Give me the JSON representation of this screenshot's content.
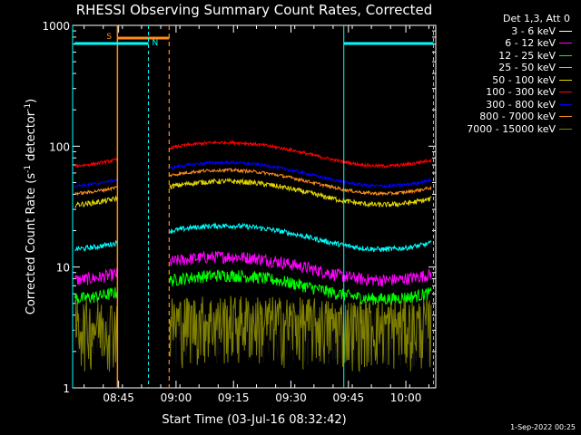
{
  "chart_data": {
    "type": "line",
    "title": "RHESSI Observing Summary Count Rates, Corrected",
    "xlabel": "Start Time (03-Jul-16 08:32:42)",
    "ylabel_main": "Corrected Count Rate (s",
    "ylabel_sup1": "-1",
    "ylabel_mid": " detector",
    "ylabel_sup2": "-1",
    "ylabel_end": ")",
    "yscale": "log",
    "ylim": [
      1,
      1000
    ],
    "xlim_minutes": [
      8.55,
      10.13
    ],
    "x_ticks": [
      {
        "value": 8.75,
        "label": "08:45"
      },
      {
        "value": 9.0,
        "label": "09:00"
      },
      {
        "value": 9.25,
        "label": "09:15"
      },
      {
        "value": 9.5,
        "label": "09:30"
      },
      {
        "value": 9.75,
        "label": "09:45"
      },
      {
        "value": 10.0,
        "label": "10:00"
      }
    ],
    "y_ticks": [
      {
        "value": 1,
        "label": "1"
      },
      {
        "value": 10,
        "label": "10"
      },
      {
        "value": 100,
        "label": "100"
      },
      {
        "value": 1000,
        "label": "1000"
      }
    ],
    "legend_title": "Det 1,3, Att 0",
    "series": [
      {
        "name": "3 - 6 keV",
        "color": "#000000",
        "base": 3.0,
        "noise": 0.5
      },
      {
        "name": "6 - 12 keV",
        "color": "#ff00ff",
        "base": 10.0,
        "noise": 0.12
      },
      {
        "name": "12 - 25 keV",
        "color": "#00ff00",
        "base": 7.0,
        "noise": 0.12
      },
      {
        "name": "25 - 50 keV",
        "color": "#00ffff",
        "base": 18.0,
        "noise": 0.05
      },
      {
        "name": "50 - 100 keV",
        "color": "#e6d800",
        "base": 42.0,
        "noise": 0.05
      },
      {
        "name": "100 - 300 keV",
        "color": "#ff0000",
        "base": 88.0,
        "noise": 0.03
      },
      {
        "name": "300 - 800 keV",
        "color": "#0000ff",
        "base": 60.0,
        "noise": 0.03
      },
      {
        "name": "800 - 7000 keV",
        "color": "#ff8c1a",
        "base": 52.0,
        "noise": 0.03
      },
      {
        "name": "7000 - 15000 keV",
        "color": "#808000",
        "base": 3.5,
        "noise": 0.6
      }
    ],
    "gaps": [
      [
        8.745,
        8.97
      ]
    ],
    "markers": [
      {
        "label": "S",
        "color": "#ff8c1a",
        "x": 8.745,
        "x_end": 8.97,
        "style": "solid"
      },
      {
        "label": "N",
        "color": "#00ffff",
        "x": 8.55,
        "x_end": 8.88,
        "style": "dashed"
      },
      {
        "label": "",
        "color": "#00ffff",
        "x": 9.73,
        "x_end": 10.12,
        "style": "solid"
      }
    ]
  },
  "footer": {
    "date": "1-Sep-2022 00:25"
  }
}
